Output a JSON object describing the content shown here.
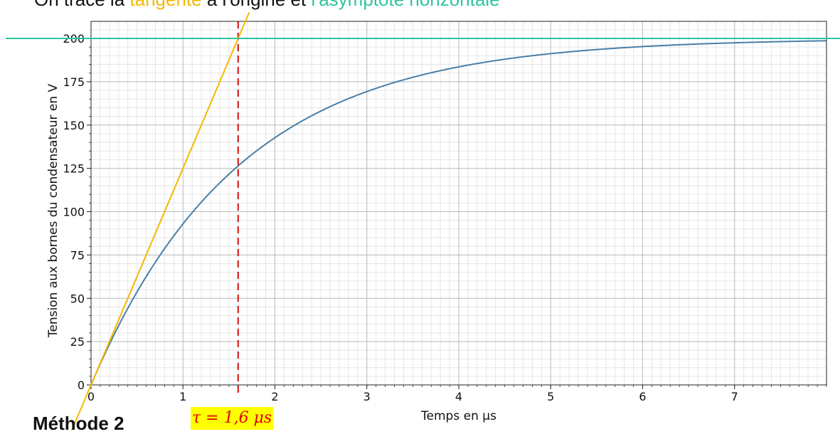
{
  "caption": {
    "part1": "On trace la ",
    "part2": "tangente",
    "part3": " à l'origine et ",
    "part4": "l'asymptote horizontale",
    "color_tangent": "#f5b800",
    "color_asymptote": "#2ec4a0"
  },
  "bottom_caption": "Méthode 2",
  "tau_label": "τ = 1,6 μs",
  "chart_data": {
    "type": "line",
    "xlabel": "Temps en μs",
    "ylabel": "Tension aux bornes du condensateur en V",
    "xlim": [
      0,
      8
    ],
    "ylim": [
      0,
      210
    ],
    "xticks": [
      0,
      1,
      2,
      3,
      4,
      5,
      6,
      7
    ],
    "yticks": [
      0,
      25,
      50,
      75,
      100,
      125,
      150,
      175,
      200
    ],
    "grid": true,
    "minor_grid": true,
    "series": [
      {
        "type": "function",
        "formula": "E*(1-exp(-t/tau))",
        "E": 200,
        "tau": 1.6,
        "color": "#4a7fa7"
      }
    ],
    "tangent": {
      "slope": 125,
      "x_range": [
        -0.25,
        1.72
      ],
      "color": "#f5b800"
    },
    "asymptote": {
      "y": 200,
      "color": "#2ec4a0"
    },
    "tau_marker": {
      "x": 1.6,
      "color": "#d62020"
    }
  }
}
